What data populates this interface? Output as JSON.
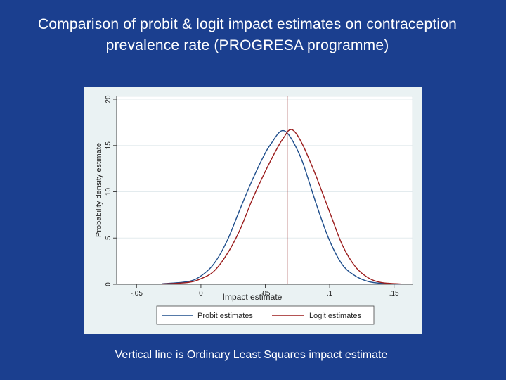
{
  "slide": {
    "title": "Comparison of probit & logit impact estimates on contraception prevalence rate (PROGRESA programme)",
    "caption": "Vertical line is Ordinary Least Squares impact estimate"
  },
  "colors": {
    "background": "#1b3f8f",
    "figure_background": "#eaf2f3",
    "plot_background": "#ffffff",
    "probit": "#1f4e8c",
    "logit": "#9b1c1c",
    "ols_line": "#8b1a1a"
  },
  "chart_data": {
    "type": "line",
    "xlabel": "Impact estimate",
    "ylabel": "Probability density estimate",
    "xlim": [
      -0.06,
      0.16
    ],
    "ylim": [
      0,
      20
    ],
    "xticks": [
      -0.05,
      0,
      0.05,
      0.1,
      0.15
    ],
    "xtick_labels": [
      "-.05",
      "0",
      ".05",
      ".1",
      ".15"
    ],
    "yticks": [
      0,
      5,
      10,
      15,
      20
    ],
    "ytick_labels": [
      "0",
      "5",
      "10",
      "15",
      "20"
    ],
    "grid": "horizontal",
    "legend_position": "bottom",
    "vertical_line": {
      "x": 0.067
    },
    "series": [
      {
        "name": "Probit estimates",
        "x": [
          -0.03,
          -0.01,
          0.0,
          0.01,
          0.02,
          0.03,
          0.04,
          0.05,
          0.055,
          0.06,
          0.063,
          0.066,
          0.07,
          0.075,
          0.08,
          0.09,
          0.1,
          0.11,
          0.12,
          0.13,
          0.14,
          0.155
        ],
        "y": [
          0.05,
          0.3,
          0.9,
          2.2,
          4.6,
          8.0,
          11.3,
          14.2,
          15.3,
          16.3,
          16.6,
          16.5,
          15.8,
          14.5,
          12.8,
          8.5,
          4.7,
          2.1,
          0.9,
          0.3,
          0.1,
          0.02
        ]
      },
      {
        "name": "Logit estimates",
        "x": [
          -0.03,
          -0.01,
          0.0,
          0.01,
          0.02,
          0.03,
          0.04,
          0.05,
          0.06,
          0.065,
          0.068,
          0.071,
          0.075,
          0.08,
          0.085,
          0.09,
          0.1,
          0.11,
          0.12,
          0.13,
          0.14,
          0.155
        ],
        "y": [
          0.03,
          0.2,
          0.6,
          1.4,
          3.2,
          5.8,
          9.2,
          12.2,
          14.9,
          16.0,
          16.6,
          16.7,
          16.1,
          14.8,
          13.2,
          11.5,
          7.8,
          4.2,
          1.9,
          0.7,
          0.2,
          0.03
        ]
      }
    ]
  }
}
